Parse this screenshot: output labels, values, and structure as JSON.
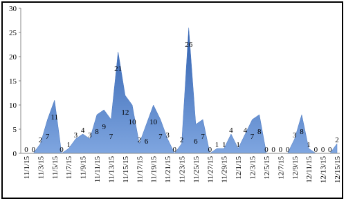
{
  "chart_data": {
    "type": "area",
    "categories": [
      "11/1/15",
      null,
      "11/3/15",
      null,
      "11/5/15",
      null,
      "11/7/15",
      null,
      "11/9/15",
      null,
      "11/11/15",
      null,
      "11/13/15",
      null,
      "11/15/15",
      null,
      "11/17/15",
      null,
      "11/19/15",
      null,
      "11/21/15",
      null,
      "11/23/15",
      null,
      "11/25/15",
      null,
      "11/27/15",
      null,
      "11/29/15",
      null,
      "12/1/15",
      null,
      "12/3/15",
      null,
      "12/5/15",
      null,
      "12/7/15",
      null,
      "12/9/15",
      null,
      "12/11/15",
      null,
      "12/13/15",
      null,
      "12/15/15"
    ],
    "values": [
      0,
      0,
      2,
      7,
      11,
      0,
      1,
      3,
      4,
      3,
      8,
      9,
      7,
      21,
      12,
      10,
      2,
      6,
      10,
      7,
      3,
      0,
      2,
      26,
      6,
      7,
      0,
      1,
      1,
      4,
      1,
      4,
      7,
      8,
      0,
      0,
      0,
      0,
      3,
      8,
      1,
      0,
      0,
      0,
      2
    ],
    "color": "#4a78c2",
    "ylim": [
      0,
      30
    ],
    "yticks": [
      0,
      5,
      10,
      15,
      20,
      25,
      30
    ]
  }
}
